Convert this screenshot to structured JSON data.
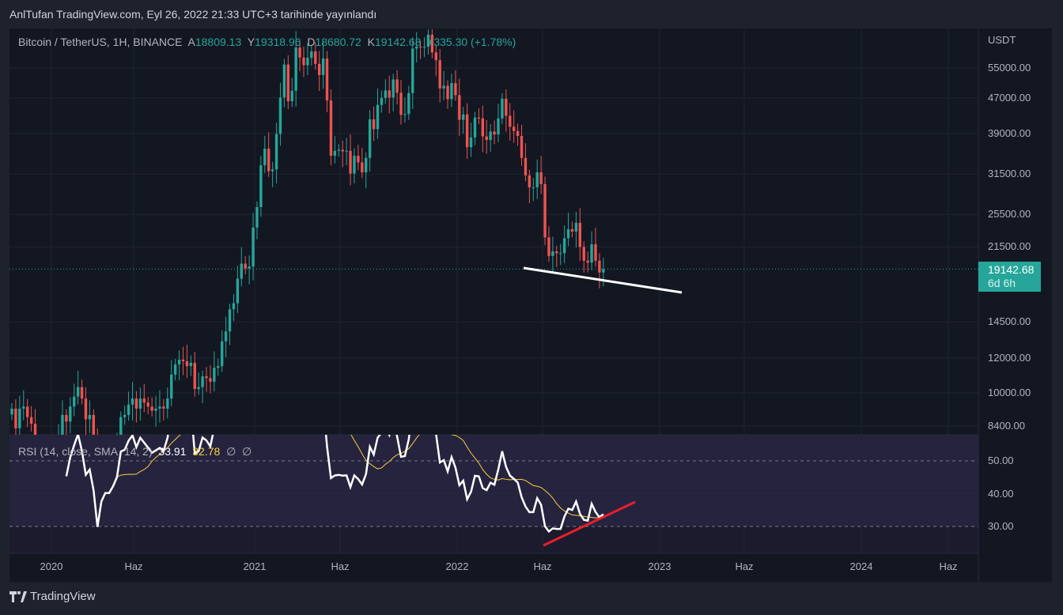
{
  "header": {
    "title": "AnlTufan TradingView.com, Eyl 26, 2022 21:33 UTC+3 tarihinde yayınlandı"
  },
  "legend": {
    "symbol": "Bitcoin / TetherUS, 1H, BINANCE",
    "open_label": "A",
    "open": "18809.13",
    "high_label": "Y",
    "high": "19318.96",
    "low_label": "D",
    "low": "18680.72",
    "close_label": "K",
    "close": "19142.68",
    "change": "+335.30 (+1.78%)"
  },
  "rsi_legend": {
    "label": "RSI (14, close, SMA, 14, 2)",
    "rsi": "33.91",
    "sma": "32.78",
    "x1": "∅",
    "x2": "∅"
  },
  "last_price": {
    "value": "19142.68",
    "countdown": "6d 6h"
  },
  "footer": {
    "brand": "TradingView"
  },
  "colors": {
    "up": "#26a69a",
    "down": "#ef5350",
    "rsi": "#ffffff",
    "rsi_sma": "#f7d23d",
    "trend_price": "#ffffff",
    "trend_rsi": "#e91e2c"
  },
  "chart_data": {
    "type": "candlestick",
    "scale": "log",
    "currency": "USDT",
    "price_ticks": [
      "55000.00",
      "47000.00",
      "39000.00",
      "31500.00",
      "25500.00",
      "21500.00",
      "14500.00",
      "12000.00",
      "10000.00",
      "8400.00"
    ],
    "rsi_ticks": [
      "50.00",
      "40.00",
      "30.00"
    ],
    "time_ticks": [
      "2020",
      "Haz",
      "2021",
      "Haz",
      "2022",
      "Haz",
      "2023",
      "Haz",
      "2024",
      "Haz"
    ],
    "weekly_closes": [
      9200,
      8300,
      9200,
      9300,
      8800,
      8500,
      7600,
      7400,
      7500,
      7250,
      7100,
      7500,
      8000,
      8900,
      8600,
      9300,
      9800,
      10300,
      9700,
      8700,
      8900,
      7900,
      5300,
      6400,
      6800,
      6800,
      7100,
      7500,
      8800,
      8900,
      9400,
      9700,
      9200,
      9700,
      9500,
      9300,
      9100,
      9200,
      9300,
      9200,
      9700,
      11000,
      11600,
      11900,
      11800,
      11500,
      11700,
      10200,
      10300,
      10900,
      10800,
      10600,
      11400,
      11500,
      13100,
      13800,
      15500,
      16000,
      18200,
      19700,
      19200,
      19400,
      23800,
      26500,
      33000,
      36000,
      32000,
      32300,
      38900,
      47100,
      56000,
      46200,
      48800,
      61200,
      58100,
      55800,
      58000,
      60000,
      56200,
      53000,
      57800,
      46400,
      34700,
      35600,
      35800,
      35500,
      35600,
      31600,
      34700,
      33500,
      31800,
      34300,
      42000,
      39900,
      45300,
      47000,
      48900,
      47100,
      51800,
      48300,
      43000,
      43200,
      48200,
      60900,
      61500,
      61300,
      61500,
      65500,
      59700,
      57300,
      49400,
      50100,
      46700,
      50800,
      47700,
      41900,
      43100,
      36300,
      38200,
      42400,
      42200,
      38400,
      37700,
      39400,
      38800,
      42200,
      46800,
      42800,
      40400,
      39500,
      38500,
      34300,
      31300,
      29400,
      29400,
      31800,
      29900,
      22600,
      20500,
      21000,
      20800,
      20800,
      22500,
      23600,
      23300,
      24400,
      21500,
      20000,
      19800,
      21800,
      20000,
      18800,
      19142.68
    ],
    "rsi_period": 14,
    "rsi_sma_period": 14,
    "rsi_last": 33.91,
    "rsi_sma_last": 32.78
  }
}
